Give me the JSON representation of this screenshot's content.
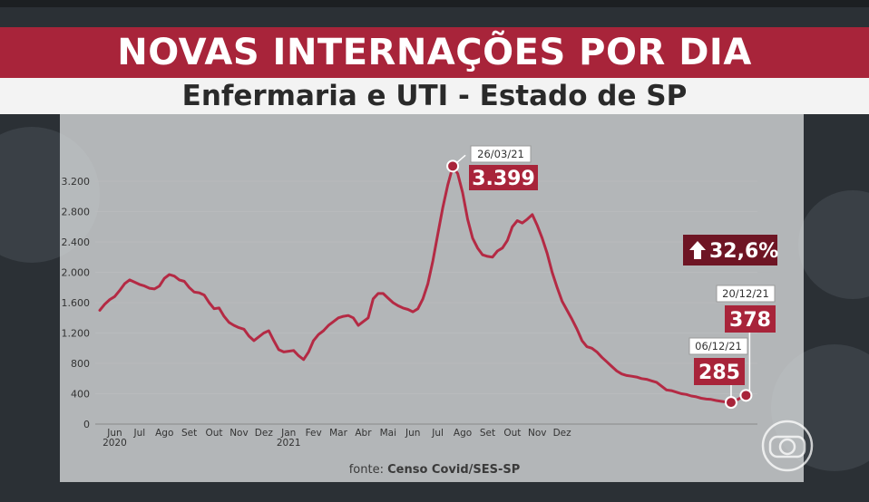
{
  "header": {
    "title": "NOVAS INTERNAÇÕES POR DIA",
    "subtitle": "Enfermaria e UTI - Estado de SP"
  },
  "source": {
    "prefix": "fonte:",
    "name": "Censo Covid/SES-SP"
  },
  "colors": {
    "accent": "#a8243a",
    "dark_badge": "#6e1524",
    "line": "#b42a44"
  },
  "chart_data": {
    "type": "line",
    "title": "NOVAS INTERNAÇÕES POR DIA",
    "subtitle": "Enfermaria e UTI - Estado de SP",
    "ylim": [
      0,
      3200
    ],
    "yticks": [
      0,
      400,
      800,
      1200,
      1600,
      2000,
      2400,
      2800,
      3200
    ],
    "ytick_labels": [
      "0",
      "400",
      "800",
      "1.200",
      "1.600",
      "2.000",
      "2.400",
      "2.800",
      "3.200"
    ],
    "grid": true,
    "x_month_labels": [
      "Jun",
      "Jul",
      "Ago",
      "Set",
      "Out",
      "Nov",
      "Dez",
      "Jan",
      "Fev",
      "Mar",
      "Abr",
      "Mai",
      "Jun",
      "Jul",
      "Ago",
      "Set",
      "Out",
      "Nov",
      "Dez"
    ],
    "x_year_labels": [
      {
        "month_index": 0,
        "year": "2020"
      },
      {
        "month_index": 7,
        "year": "2021"
      }
    ],
    "series": [
      {
        "name": "Novas internações por dia",
        "points": [
          [
            0.0,
            1500
          ],
          [
            0.2,
            1580
          ],
          [
            0.4,
            1640
          ],
          [
            0.6,
            1680
          ],
          [
            0.8,
            1760
          ],
          [
            1.0,
            1850
          ],
          [
            1.2,
            1900
          ],
          [
            1.4,
            1870
          ],
          [
            1.6,
            1840
          ],
          [
            1.8,
            1820
          ],
          [
            2.0,
            1790
          ],
          [
            2.2,
            1780
          ],
          [
            2.4,
            1820
          ],
          [
            2.6,
            1920
          ],
          [
            2.8,
            1970
          ],
          [
            3.0,
            1950
          ],
          [
            3.2,
            1900
          ],
          [
            3.4,
            1880
          ],
          [
            3.6,
            1800
          ],
          [
            3.8,
            1740
          ],
          [
            4.0,
            1730
          ],
          [
            4.2,
            1700
          ],
          [
            4.4,
            1600
          ],
          [
            4.6,
            1520
          ],
          [
            4.8,
            1530
          ],
          [
            5.0,
            1420
          ],
          [
            5.2,
            1340
          ],
          [
            5.4,
            1300
          ],
          [
            5.6,
            1270
          ],
          [
            5.8,
            1250
          ],
          [
            6.0,
            1160
          ],
          [
            6.2,
            1100
          ],
          [
            6.4,
            1150
          ],
          [
            6.6,
            1200
          ],
          [
            6.8,
            1230
          ],
          [
            7.0,
            1100
          ],
          [
            7.2,
            980
          ],
          [
            7.4,
            950
          ],
          [
            7.6,
            960
          ],
          [
            7.8,
            970
          ],
          [
            8.0,
            900
          ],
          [
            8.2,
            850
          ],
          [
            8.4,
            950
          ],
          [
            8.6,
            1100
          ],
          [
            8.8,
            1180
          ],
          [
            9.0,
            1230
          ],
          [
            9.2,
            1300
          ],
          [
            9.4,
            1350
          ],
          [
            9.6,
            1400
          ],
          [
            9.8,
            1420
          ],
          [
            10.0,
            1430
          ],
          [
            10.2,
            1400
          ],
          [
            10.4,
            1300
          ],
          [
            10.6,
            1350
          ],
          [
            10.8,
            1400
          ],
          [
            11.0,
            1650
          ],
          [
            11.2,
            1720
          ],
          [
            11.4,
            1720
          ],
          [
            11.6,
            1660
          ],
          [
            11.8,
            1600
          ],
          [
            12.0,
            1560
          ],
          [
            12.2,
            1530
          ],
          [
            12.4,
            1510
          ],
          [
            12.6,
            1480
          ],
          [
            12.8,
            1520
          ],
          [
            13.0,
            1650
          ],
          [
            13.2,
            1850
          ],
          [
            13.4,
            2150
          ],
          [
            13.6,
            2500
          ],
          [
            13.8,
            2850
          ],
          [
            14.0,
            3150
          ],
          [
            14.2,
            3390
          ],
          [
            14.4,
            3300
          ],
          [
            14.6,
            3050
          ],
          [
            14.8,
            2700
          ],
          [
            15.0,
            2450
          ],
          [
            15.2,
            2320
          ],
          [
            15.4,
            2230
          ],
          [
            15.6,
            2210
          ],
          [
            15.8,
            2200
          ],
          [
            16.0,
            2280
          ],
          [
            16.2,
            2320
          ],
          [
            16.4,
            2420
          ],
          [
            16.6,
            2600
          ],
          [
            16.8,
            2680
          ],
          [
            17.0,
            2650
          ],
          [
            17.2,
            2700
          ],
          [
            17.4,
            2760
          ],
          [
            17.6,
            2620
          ],
          [
            17.8,
            2450
          ],
          [
            18.0,
            2250
          ],
          [
            18.2,
            2000
          ],
          [
            18.4,
            1800
          ],
          [
            18.6,
            1620
          ],
          [
            18.8,
            1500
          ],
          [
            19.0,
            1380
          ],
          [
            19.2,
            1250
          ],
          [
            19.4,
            1100
          ],
          [
            19.6,
            1020
          ],
          [
            19.8,
            1000
          ],
          [
            20.0,
            950
          ],
          [
            20.2,
            880
          ],
          [
            20.4,
            820
          ],
          [
            20.6,
            760
          ],
          [
            20.8,
            700
          ],
          [
            21.0,
            660
          ],
          [
            21.2,
            640
          ],
          [
            21.4,
            630
          ],
          [
            21.6,
            620
          ],
          [
            21.8,
            600
          ],
          [
            22.0,
            590
          ],
          [
            22.2,
            570
          ],
          [
            22.4,
            550
          ],
          [
            22.6,
            500
          ],
          [
            22.8,
            450
          ],
          [
            23.0,
            440
          ],
          [
            23.2,
            420
          ],
          [
            23.4,
            400
          ],
          [
            23.6,
            390
          ],
          [
            23.8,
            370
          ],
          [
            24.0,
            360
          ],
          [
            24.2,
            340
          ],
          [
            24.4,
            330
          ],
          [
            24.6,
            325
          ],
          [
            24.8,
            310
          ],
          [
            25.0,
            300
          ],
          [
            25.2,
            290
          ],
          [
            25.4,
            285
          ],
          [
            25.6,
            310
          ],
          [
            25.8,
            350
          ],
          [
            26.0,
            378
          ]
        ]
      }
    ],
    "annotations": [
      {
        "label_id": "peak",
        "date": "26/03/21",
        "value_label": "3.399",
        "x": 14.2,
        "y": 3399
      },
      {
        "label_id": "low",
        "date": "06/12/21",
        "value_label": "285",
        "x": 25.4,
        "y": 285
      },
      {
        "label_id": "last",
        "date": "20/12/21",
        "value_label": "378",
        "x": 26.0,
        "y": 378
      }
    ],
    "change_badge": {
      "icon": "arrow-up-icon",
      "text": "32,6%"
    }
  }
}
